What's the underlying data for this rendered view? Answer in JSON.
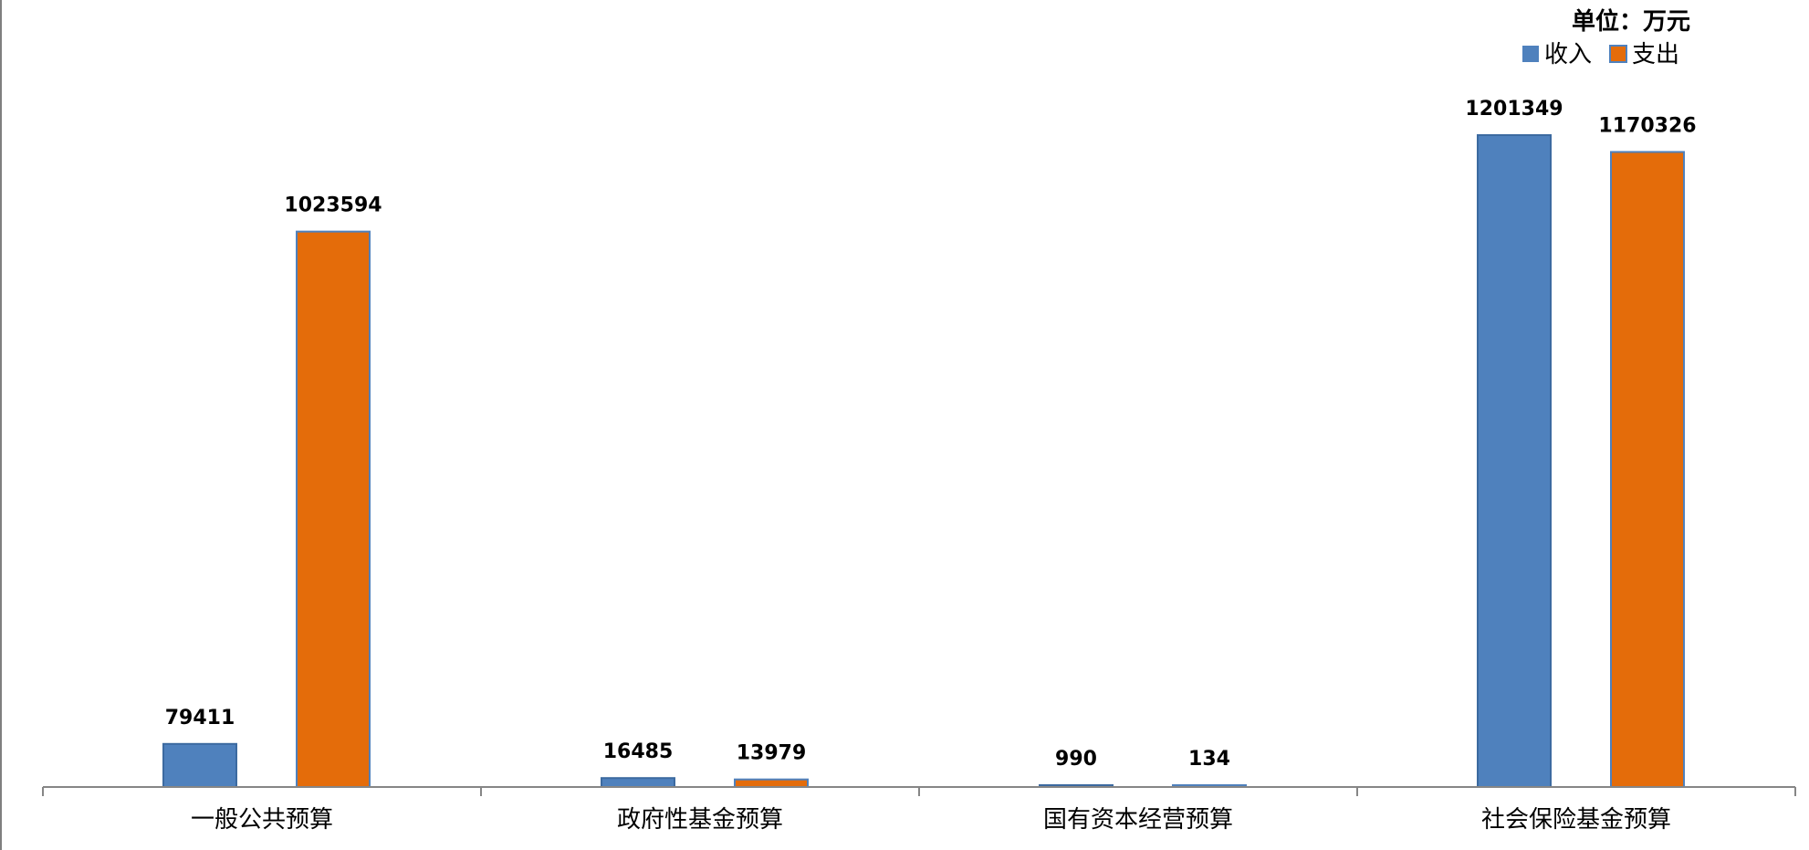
{
  "chart_data": {
    "type": "bar",
    "unit_label": "单位：万元",
    "categories": [
      "一般公共预算",
      "政府性基金预算",
      "国有资本经营预算",
      "社会保险基金预算"
    ],
    "series": [
      {
        "name": "收入",
        "color": "#4f81bd",
        "values": [
          79411,
          16485,
          990,
          1201349
        ]
      },
      {
        "name": "支出",
        "color": "#e46c0a",
        "values": [
          1023594,
          13979,
          134,
          1170326
        ]
      }
    ],
    "legend_position": "top-right",
    "grid": false,
    "ylim": [
      0,
      1220000
    ]
  }
}
